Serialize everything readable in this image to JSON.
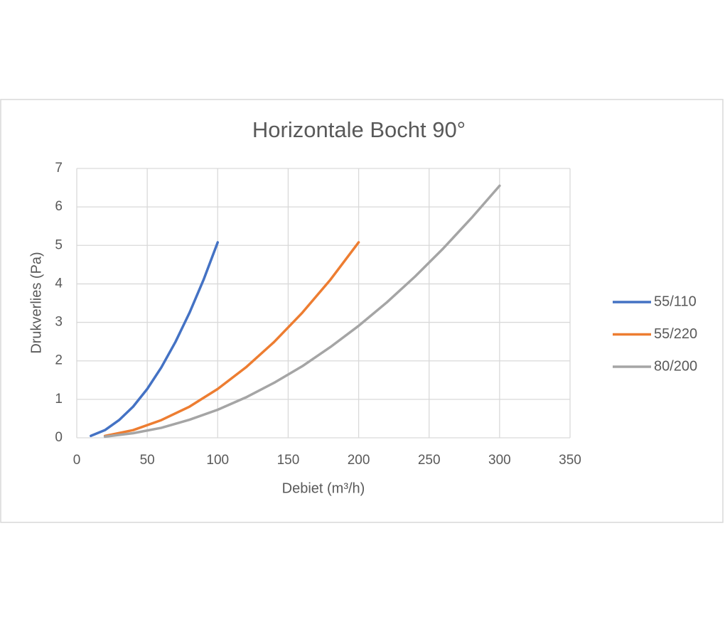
{
  "chart_data": {
    "type": "line",
    "title": "Horizontale Bocht 90°",
    "x_label": "Debiet (m³/h)",
    "y_label": "Drukverlies (Pa)",
    "xlim": [
      0,
      350
    ],
    "xticks": [
      0,
      50,
      100,
      150,
      200,
      250,
      300,
      350
    ],
    "ylim": [
      0,
      7
    ],
    "yticks": [
      0,
      1,
      2,
      3,
      4,
      5,
      6,
      7
    ],
    "grid": true,
    "legend": "right",
    "series": [
      {
        "name": "55/110",
        "color": "#4472c4",
        "x": [
          10,
          20,
          30,
          40,
          50,
          60,
          70,
          80,
          90,
          100
        ],
        "values": [
          0.05,
          0.2,
          0.46,
          0.81,
          1.27,
          1.83,
          2.49,
          3.25,
          4.11,
          5.08
        ]
      },
      {
        "name": "55/220",
        "color": "#ed7d31",
        "x": [
          20,
          40,
          60,
          80,
          100,
          120,
          140,
          160,
          180,
          200
        ],
        "values": [
          0.05,
          0.2,
          0.46,
          0.81,
          1.27,
          1.83,
          2.49,
          3.25,
          4.11,
          5.08
        ]
      },
      {
        "name": "80/200",
        "color": "#a5a5a5",
        "x": [
          20,
          40,
          60,
          80,
          100,
          120,
          140,
          160,
          180,
          200,
          220,
          240,
          260,
          280,
          300
        ],
        "values": [
          0.03,
          0.12,
          0.26,
          0.47,
          0.73,
          1.05,
          1.43,
          1.86,
          2.36,
          2.91,
          3.52,
          4.19,
          4.92,
          5.71,
          6.55
        ]
      }
    ]
  }
}
